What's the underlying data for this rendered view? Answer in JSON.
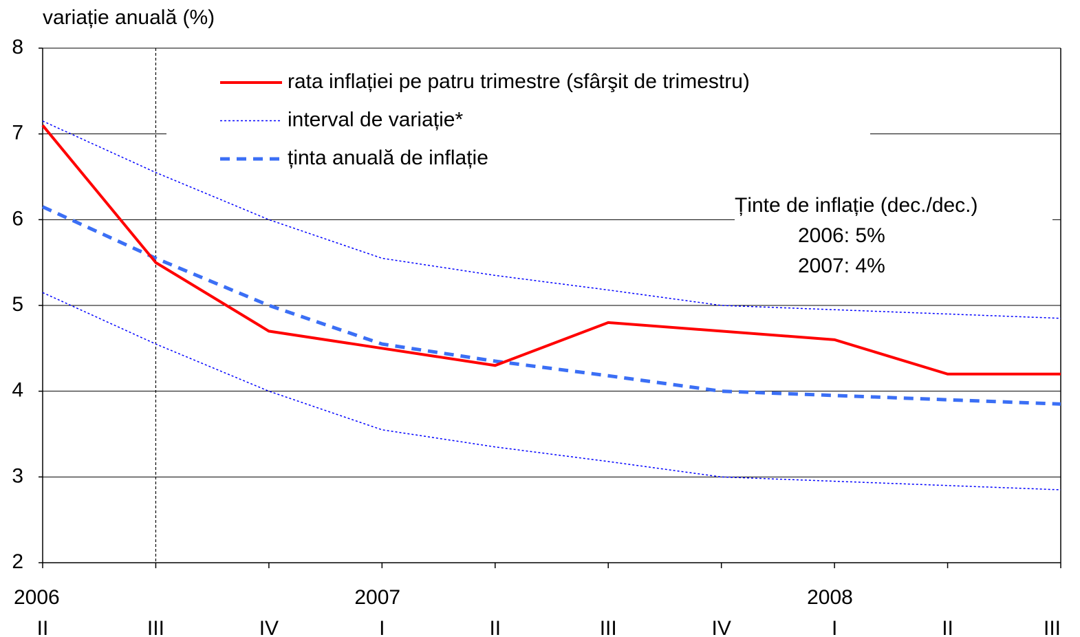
{
  "chart_data": {
    "type": "line",
    "y_label": "variație anuală (%)",
    "categories": [
      "II",
      "III",
      "IV",
      "I",
      "II",
      "III",
      "IV",
      "I",
      "II",
      "III"
    ],
    "years": [
      "2006",
      null,
      null,
      "2007",
      null,
      null,
      null,
      "2008",
      null,
      null
    ],
    "ylim": [
      2,
      8
    ],
    "yticks": [
      2,
      3,
      4,
      5,
      6,
      7,
      8
    ],
    "grid": true,
    "vline_index": 1,
    "series": [
      {
        "name": "rata inflației pe patru trimestre (sfârşit de trimestru)",
        "color": "#ff0000",
        "style": "solid",
        "values": [
          7.1,
          5.5,
          4.7,
          4.5,
          4.3,
          4.8,
          4.7,
          4.6,
          4.2,
          4.2
        ]
      },
      {
        "name": "interval de variație*",
        "color": "#0000ff",
        "style": "dotted",
        "values": [
          7.15,
          6.55,
          6.0,
          5.55,
          5.35,
          5.18,
          5.0,
          4.95,
          4.9,
          4.85
        ],
        "values_low": [
          5.15,
          4.55,
          4.0,
          3.55,
          3.35,
          3.18,
          3.0,
          2.95,
          2.9,
          2.85
        ]
      },
      {
        "name": "ținta anuală de inflație",
        "color": "#3b6ff5",
        "style": "dashed",
        "values": [
          6.15,
          5.55,
          5.0,
          4.55,
          4.35,
          4.18,
          4.0,
          3.95,
          3.9,
          3.85
        ]
      }
    ],
    "annotations": [
      "Ținte de inflație (dec./dec.)",
      "2006: 5%",
      "2007: 4%"
    ]
  }
}
